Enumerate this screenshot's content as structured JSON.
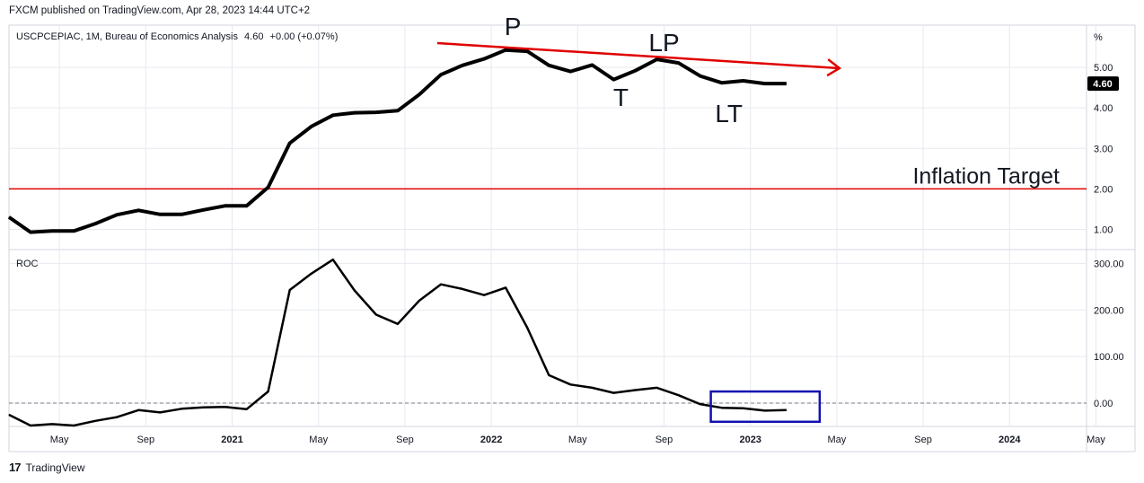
{
  "header": {
    "text": "FXCM published on TradingView.com, Apr 28, 2023 14:44 UTC+2"
  },
  "footer": {
    "logo": "17",
    "brand": "TradingView"
  },
  "colors": {
    "line": "#000000",
    "target": "#e00000",
    "trend": "#e00000",
    "box": "#1010b0",
    "grid": "#e6e9ef",
    "label_bg": "#000000"
  },
  "chart_data": [
    {
      "type": "line",
      "legend": "USCPCEPIAC, 1M, Bureau of Economics Analysis",
      "legend_value": "4.60",
      "legend_change": "+0.00 (+0.07%)",
      "unit_label": "%",
      "last_value_label": "4.60",
      "yticks": [
        "5.00",
        "4.00",
        "3.00",
        "2.00",
        "1.00"
      ],
      "ylim": [
        0.5,
        6.0
      ],
      "x": [
        "2020-03",
        "2020-04",
        "2020-05",
        "2020-06",
        "2020-07",
        "2020-08",
        "2020-09",
        "2020-10",
        "2020-11",
        "2020-12",
        "2021-01",
        "2021-02",
        "2021-03",
        "2021-04",
        "2021-05",
        "2021-06",
        "2021-07",
        "2021-08",
        "2021-09",
        "2021-10",
        "2021-11",
        "2021-12",
        "2022-01",
        "2022-02",
        "2022-03",
        "2022-04",
        "2022-05",
        "2022-06",
        "2022-07",
        "2022-08",
        "2022-09",
        "2022-10",
        "2022-11",
        "2022-12",
        "2023-01",
        "2023-02",
        "2023-03"
      ],
      "values": [
        1.3,
        0.93,
        0.96,
        0.96,
        1.14,
        1.36,
        1.47,
        1.37,
        1.37,
        1.48,
        1.58,
        1.58,
        2.04,
        3.13,
        3.54,
        3.82,
        3.88,
        3.89,
        3.93,
        4.33,
        4.82,
        5.05,
        5.21,
        5.43,
        5.4,
        5.05,
        4.9,
        5.06,
        4.7,
        4.92,
        5.2,
        5.11,
        4.79,
        4.62,
        4.67,
        4.6,
        4.6
      ],
      "reference_line": {
        "value": 2.0,
        "label": "Inflation Target"
      },
      "trend_line": {
        "from": [
          "2021-10",
          5.6
        ],
        "to": [
          "2023-04",
          4.98
        ]
      },
      "annotations": [
        {
          "text": "P",
          "x": "2022-02",
          "y": 5.8
        },
        {
          "text": "LP",
          "x": "2022-09",
          "y": 5.4
        },
        {
          "text": "T",
          "x": "2022-07",
          "y": 4.05
        },
        {
          "text": "LT",
          "x": "2022-12",
          "y": 3.65
        }
      ]
    },
    {
      "type": "line",
      "legend": "ROC",
      "yticks": [
        "300.00",
        "200.00",
        "100.00",
        "0.00"
      ],
      "ylim": [
        -50,
        320
      ],
      "x": [
        "2020-03",
        "2020-04",
        "2020-05",
        "2020-06",
        "2020-07",
        "2020-08",
        "2020-09",
        "2020-10",
        "2020-11",
        "2020-12",
        "2021-01",
        "2021-02",
        "2021-03",
        "2021-04",
        "2021-05",
        "2021-06",
        "2021-07",
        "2021-08",
        "2021-09",
        "2021-10",
        "2021-11",
        "2021-12",
        "2022-01",
        "2022-02",
        "2022-03",
        "2022-04",
        "2022-05",
        "2022-06",
        "2022-07",
        "2022-08",
        "2022-09",
        "2022-10",
        "2022-11",
        "2022-12",
        "2023-01",
        "2023-02",
        "2023-03"
      ],
      "values": [
        -25,
        -48,
        -45,
        -48,
        -38,
        -30,
        -15,
        -20,
        -12,
        -9,
        -8,
        -13,
        25,
        243,
        278,
        308,
        242,
        190,
        170,
        220,
        255,
        245,
        232,
        248,
        162,
        60,
        40,
        33,
        22,
        28,
        33,
        17,
        -2,
        -10,
        -11,
        -16,
        -15
      ],
      "zero_line": true,
      "highlight_box": {
        "x_from": "2022-11",
        "x_to": "2023-04",
        "y_from": 25,
        "y_to": -40
      }
    }
  ],
  "x_axis": {
    "ticks": [
      {
        "label": "May",
        "date": "2020-05",
        "bold": false
      },
      {
        "label": "Sep",
        "date": "2020-09",
        "bold": false
      },
      {
        "label": "2021",
        "date": "2021-01",
        "bold": true
      },
      {
        "label": "May",
        "date": "2021-05",
        "bold": false
      },
      {
        "label": "Sep",
        "date": "2021-09",
        "bold": false
      },
      {
        "label": "2022",
        "date": "2022-01",
        "bold": true
      },
      {
        "label": "May",
        "date": "2022-05",
        "bold": false
      },
      {
        "label": "Sep",
        "date": "2022-09",
        "bold": false
      },
      {
        "label": "2023",
        "date": "2023-01",
        "bold": true
      },
      {
        "label": "May",
        "date": "2023-05",
        "bold": false
      },
      {
        "label": "Sep",
        "date": "2023-09",
        "bold": false
      },
      {
        "label": "2024",
        "date": "2024-01",
        "bold": true
      },
      {
        "label": "May",
        "date": "2024-05",
        "bold": false
      }
    ]
  }
}
